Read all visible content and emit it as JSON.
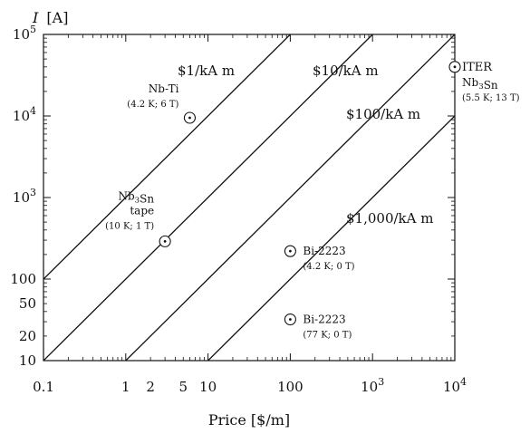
{
  "chart_data": {
    "type": "scatter",
    "x_scale": "log",
    "y_scale": "log",
    "xlim": [
      0.1,
      10000
    ],
    "ylim": [
      10,
      100000
    ],
    "xlabel": "Price [$/m]",
    "ylabel_symbol": "I",
    "ylabel_unit": "[A]",
    "grid": false,
    "x_ticks": [
      {
        "value": 0.1,
        "label": "0.1"
      },
      {
        "value": 1,
        "label": "1"
      },
      {
        "value": 2,
        "label": "2"
      },
      {
        "value": 5,
        "label": "5"
      },
      {
        "value": 10,
        "label": "10"
      },
      {
        "value": 100,
        "label": "100"
      },
      {
        "value": 1000,
        "label": "10",
        "sup": "3"
      },
      {
        "value": 10000,
        "label": "10",
        "sup": "4"
      }
    ],
    "y_ticks": [
      {
        "value": 10,
        "label": "10"
      },
      {
        "value": 20,
        "label": "20"
      },
      {
        "value": 50,
        "label": "50"
      },
      {
        "value": 100,
        "label": "100"
      },
      {
        "value": 1000,
        "label": "10",
        "sup": "3"
      },
      {
        "value": 10000,
        "label": "10",
        "sup": "4"
      },
      {
        "value": 100000,
        "label": "10",
        "sup": "5"
      }
    ],
    "cost_lines": [
      {
        "label": "$1/kA m",
        "points": [
          [
            0.1,
            100
          ],
          [
            1000,
            1000000
          ]
        ]
      },
      {
        "label": "$10/kA m",
        "points": [
          [
            0.1,
            10
          ],
          [
            1000,
            100000
          ]
        ]
      },
      {
        "label": "$100/kA m",
        "points": [
          [
            1,
            10
          ],
          [
            10000,
            100000
          ]
        ]
      },
      {
        "label": "$1,000/kA m",
        "points": [
          [
            10,
            10
          ],
          [
            10000,
            10000
          ]
        ]
      }
    ],
    "points": [
      {
        "x": 6,
        "y": 9500,
        "lines": [
          "Nb-Ti",
          "(4.2 K; 6 T)"
        ]
      },
      {
        "x": 3,
        "y": 290,
        "lines": [
          "Nb3Sn",
          "tape",
          "(10 K; 1 T)"
        ]
      },
      {
        "x": 100,
        "y": 220,
        "lines": [
          "Bi-2223",
          "(4.2 K; 0 T)"
        ]
      },
      {
        "x": 100,
        "y": 32,
        "lines": [
          "Bi-2223",
          "(77 K; 0 T)"
        ]
      },
      {
        "x": 10000,
        "y": 40000,
        "lines": [
          "ITER",
          "Nb3Sn",
          "(5.5 K; 13 T)"
        ]
      }
    ]
  }
}
